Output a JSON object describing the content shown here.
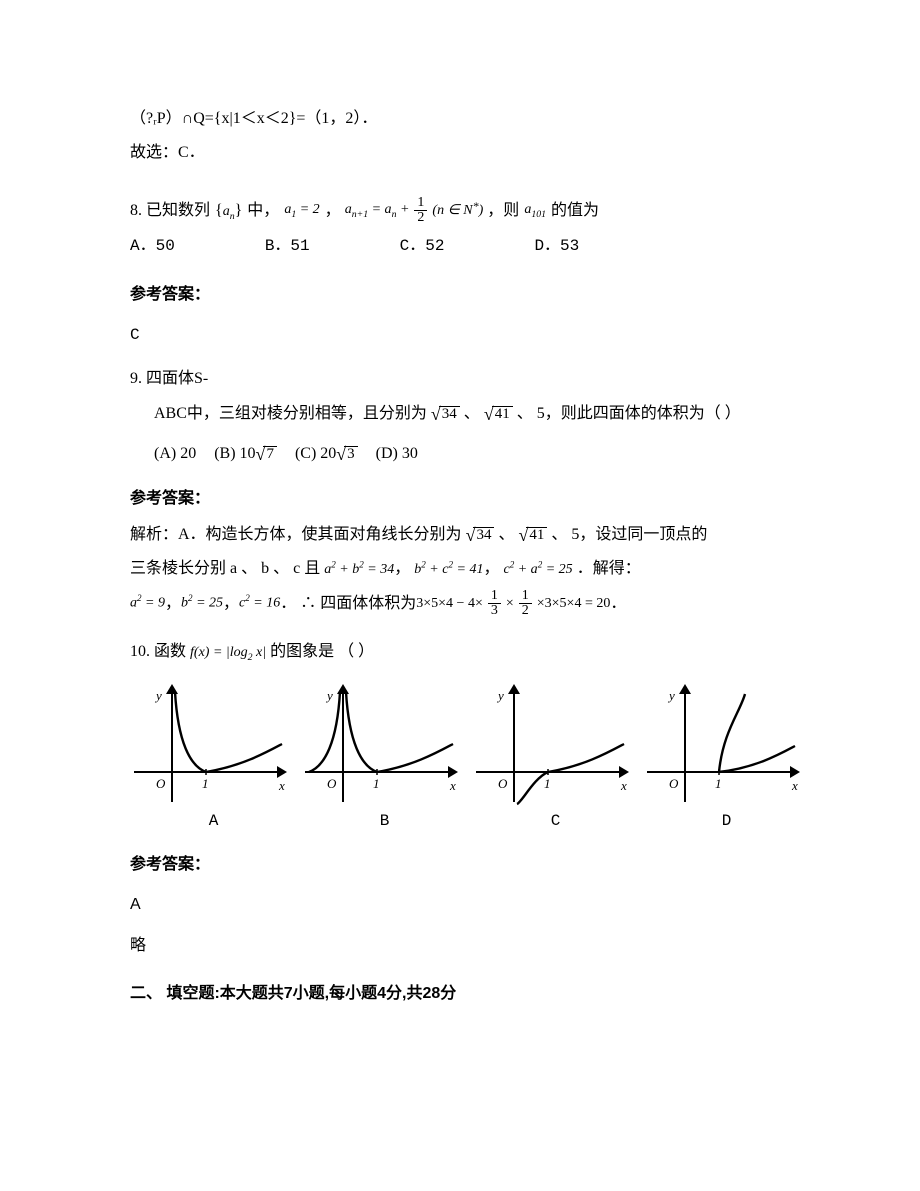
{
  "top": {
    "expr": "（?ᵣP）∩Q={x|1＜x＜2}=（1，2）．",
    "choice": "故选：C．"
  },
  "q8": {
    "stem_a": "8. 已知数列",
    "seq": "aₙ",
    "stem_b": "中，",
    "a1": "a₁ = 2",
    "comma": "，",
    "recur_lhs": "aₙ₊₁ = aₙ +",
    "recur_frac_num": "1",
    "recur_frac_den": "2",
    "recur_tail": "(n ∈ N",
    "star": "*",
    "paren": ")",
    "stem_c": "，则",
    "a101": "a₁₀₁",
    "stem_d": "的值为",
    "optA": "A．50",
    "optB": "B．51",
    "optC": "C．52",
    "optD": "D．53",
    "ref": "参考答案：",
    "ans": "C"
  },
  "q9": {
    "l1": "9.   四面体S-",
    "l2a": "ABC中，三组对棱分别相等，且分别为",
    "s34": "34",
    "sep": "、",
    "s41": "41",
    "l2b": "、 5，则此四面体的体积为（   ）",
    "optA": "(A)  20",
    "optB_pre": "(B)  ",
    "optB_coef": "10",
    "optB_rad": "7",
    "optC_pre": "(C)  ",
    "optC_coef": "20",
    "optC_rad": "3",
    "optD": "(D)  30",
    "ref": "参考答案：",
    "sol_a": "解析：A．构造长方体，使其面对角线长分别为",
    "sol_b": "、 5，设过同一顶点的",
    "sol_c": "三条棱长分别 a 、 b 、 c 且",
    "eq1": "a² + b² = 34",
    "eq2": "b² + c² = 41",
    "eq3": "c² + a² = 25",
    "sol_d": "．解得：",
    "eq4": "a² = 9",
    "eq5": "b² = 25",
    "eq6": "c² = 16",
    "sol_e": "．  ∴ 四面体体积为",
    "vol_expr_a": "3×5×4 − 4×",
    "vol_f1n": "1",
    "vol_f1d": "3",
    "vol_mid": "×",
    "vol_f2n": "1",
    "vol_f2d": "2",
    "vol_expr_b": "×3×5×4 = 20",
    "dot": "．"
  },
  "q10": {
    "stem_a": "10. 函数",
    "fx": "f(x) = |log₂ x|",
    "stem_b": "的图象是        （    ）",
    "labels": [
      "A",
      "B",
      "C",
      "D"
    ],
    "ref": "参考答案：",
    "ans": "A",
    "lue": "略"
  },
  "section2": "二、 填空题:本大题共7小题,每小题4分,共28分",
  "graph": {
    "stroke": "#000000",
    "bg": "#ffffff",
    "axis_y_label": "y",
    "axis_x_label": "x",
    "origin": "O",
    "one": "1",
    "w": 168,
    "h": 130,
    "ox": 42,
    "oy": 96,
    "xmax": 155,
    "ymax": 10,
    "arrow": 6
  }
}
